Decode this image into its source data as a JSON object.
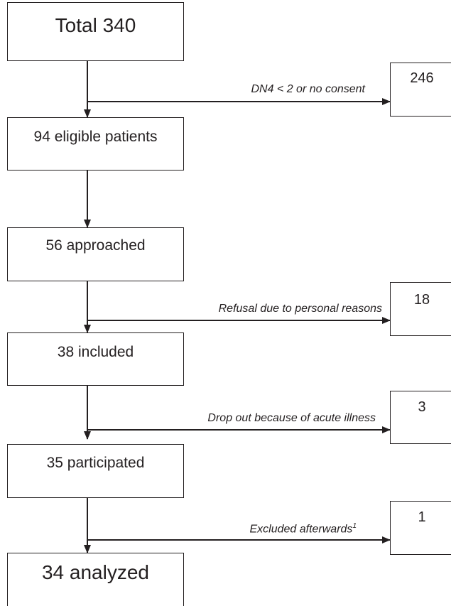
{
  "boxes": {
    "total": "Total 340",
    "eligible": "94 eligible patients",
    "approached": "56 approached",
    "included": "38 included",
    "participated": "35 participated",
    "analyzed": "34 analyzed"
  },
  "exclusions": {
    "e1": {
      "count": "246",
      "reason": "DN4 < 2 or no consent"
    },
    "e2": {
      "count": "18",
      "reason": "Refusal due to personal reasons"
    },
    "e3": {
      "count": "3",
      "reason": "Drop out because of acute illness"
    },
    "e4": {
      "count": "1",
      "reason": "Excluded afterwards",
      "footnote": "1"
    }
  },
  "colors": {
    "line": "#231f20",
    "background": "#ffffff"
  }
}
